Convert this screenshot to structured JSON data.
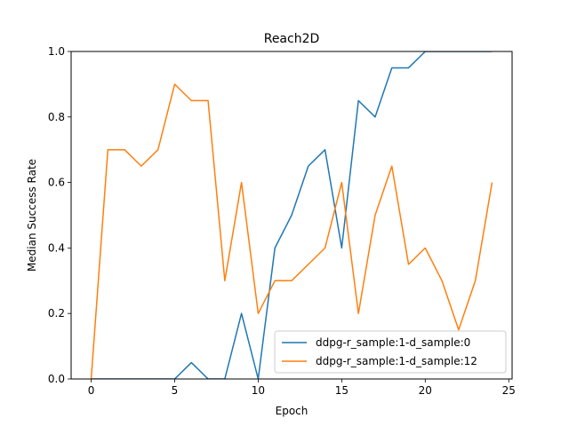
{
  "chart_data": {
    "type": "line",
    "title": "Reach2D",
    "xlabel": "Epoch",
    "ylabel": "Median Success Rate",
    "xlim": [
      -1.2,
      25.2
    ],
    "ylim": [
      0,
      1.0
    ],
    "xticks": [
      0,
      5,
      10,
      15,
      20,
      25
    ],
    "yticks": [
      0.0,
      0.2,
      0.4,
      0.6,
      0.8,
      1.0
    ],
    "grid": false,
    "legend_position": "lower-right",
    "series": [
      {
        "name": "ddpg-r_sample:1-d_sample:0",
        "color": "#1f77b4",
        "x": [
          0,
          1,
          2,
          3,
          4,
          5,
          6,
          7,
          8,
          9,
          10,
          11,
          12,
          13,
          14,
          15,
          16,
          17,
          18,
          19,
          20,
          21,
          22,
          23,
          24
        ],
        "values": [
          0,
          0,
          0,
          0,
          0,
          0,
          0.05,
          0,
          0,
          0.2,
          0,
          0.4,
          0.5,
          0.65,
          0.7,
          0.4,
          0.85,
          0.8,
          0.95,
          0.95,
          1.0,
          1.0,
          1.0,
          1.0,
          1.0
        ]
      },
      {
        "name": "ddpg-r_sample:1-d_sample:12",
        "color": "#ff7f0e",
        "x": [
          0,
          1,
          2,
          3,
          4,
          5,
          6,
          7,
          8,
          9,
          10,
          11,
          12,
          13,
          14,
          15,
          16,
          17,
          18,
          19,
          20,
          21,
          22,
          23,
          24
        ],
        "values": [
          0,
          0.7,
          0.7,
          0.65,
          0.7,
          0.9,
          0.85,
          0.85,
          0.3,
          0.6,
          0.2,
          0.3,
          0.3,
          0.35,
          0.4,
          0.6,
          0.2,
          0.5,
          0.65,
          0.35,
          0.4,
          0.3,
          0.15,
          0.3,
          0.6
        ]
      }
    ]
  }
}
